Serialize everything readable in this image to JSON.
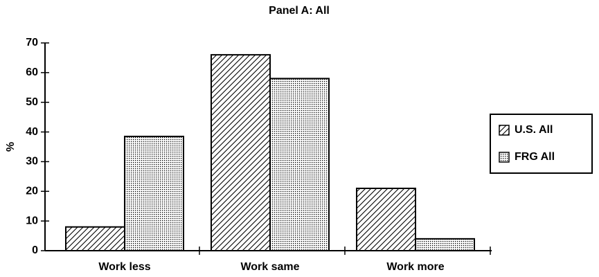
{
  "chart_data": {
    "type": "bar",
    "title": "Panel A: All",
    "y_label": "%",
    "categories": [
      "Work less",
      "Work same",
      "Work more"
    ],
    "series": [
      {
        "name": "U.S. All",
        "color": "#000000",
        "pattern": "hatch",
        "values": [
          8,
          66,
          21
        ]
      },
      {
        "name": "FRG All",
        "color": "#000000",
        "pattern": "dots",
        "values": [
          38.5,
          58,
          4
        ]
      }
    ],
    "ylim": [
      0,
      70
    ],
    "yticks": [
      0,
      10,
      20,
      30,
      40,
      50,
      60,
      70
    ],
    "grid": false,
    "legend": "right"
  }
}
